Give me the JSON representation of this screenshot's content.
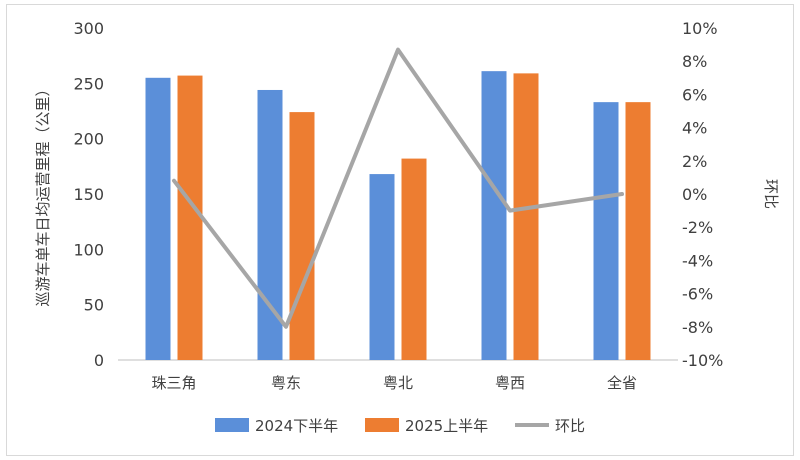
{
  "chart_data": {
    "type": "bar",
    "categories": [
      "珠三角",
      "粤东",
      "粤北",
      "粤西",
      "全省"
    ],
    "series": [
      {
        "name": "2024下半年",
        "kind": "bar",
        "axis": "left",
        "color": "#5b8fd9",
        "values": [
          255,
          244,
          168,
          261,
          233
        ]
      },
      {
        "name": "2025上半年",
        "kind": "bar",
        "axis": "left",
        "color": "#ed7d31",
        "values": [
          257,
          224,
          182,
          259,
          233
        ]
      },
      {
        "name": "环比",
        "kind": "line",
        "axis": "right",
        "color": "#a6a6a6",
        "values": [
          0.8,
          -8.0,
          8.7,
          -1.0,
          0.0
        ]
      }
    ],
    "title": "",
    "ylabel": "巡游车单车日均运营里程（公里）",
    "y2label": "环比",
    "ylim": [
      0,
      300
    ],
    "yticks": [
      0,
      50,
      100,
      150,
      200,
      250,
      300
    ],
    "y2lim": [
      -10,
      10
    ],
    "y2ticks": [
      "-10%",
      "-8%",
      "-6%",
      "-4%",
      "-2%",
      "0%",
      "2%",
      "4%",
      "6%",
      "8%",
      "10%"
    ],
    "grid": false,
    "legend": "bottom"
  }
}
